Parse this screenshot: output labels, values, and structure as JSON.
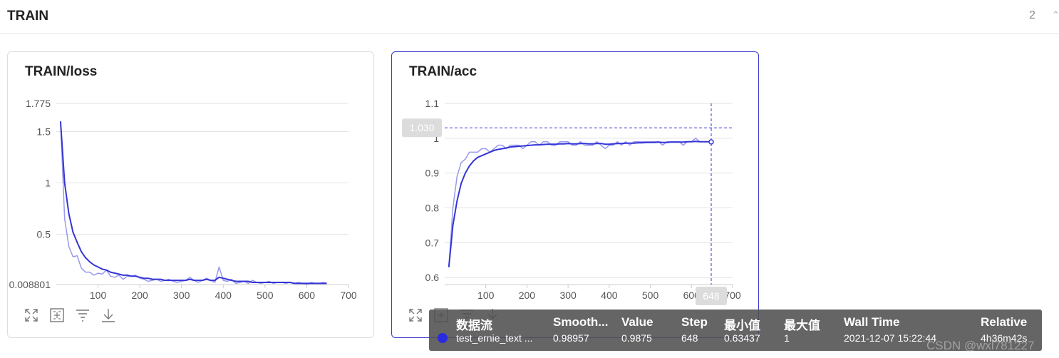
{
  "header": {
    "title": "TRAIN",
    "page_count": "2"
  },
  "chart_data": [
    {
      "type": "line",
      "title": "TRAIN/loss",
      "xlim": [
        0,
        700
      ],
      "ylim": [
        0.008801,
        1.775
      ],
      "x_ticks": [
        "100",
        "200",
        "300",
        "400",
        "500",
        "600",
        "700"
      ],
      "y_ticks": [
        "1.775",
        "1.5",
        "1",
        "0.5",
        "0.008801"
      ],
      "grid": true,
      "series": [
        {
          "role": "raw",
          "color": "#9999ee",
          "x": [
            10,
            20,
            30,
            40,
            50,
            60,
            70,
            80,
            90,
            100,
            110,
            120,
            130,
            140,
            150,
            160,
            170,
            180,
            190,
            200,
            210,
            220,
            230,
            240,
            250,
            260,
            270,
            280,
            290,
            300,
            310,
            320,
            330,
            340,
            350,
            360,
            370,
            380,
            390,
            400,
            410,
            420,
            430,
            440,
            450,
            460,
            470,
            480,
            490,
            500,
            510,
            520,
            530,
            540,
            550,
            560,
            570,
            580,
            590,
            600,
            610,
            620,
            630,
            640,
            648
          ],
          "y": [
            1.6,
            0.65,
            0.38,
            0.28,
            0.29,
            0.17,
            0.13,
            0.13,
            0.1,
            0.12,
            0.11,
            0.15,
            0.09,
            0.08,
            0.1,
            0.06,
            0.09,
            0.09,
            0.1,
            0.07,
            0.06,
            0.04,
            0.05,
            0.06,
            0.04,
            0.05,
            0.06,
            0.04,
            0.03,
            0.04,
            0.05,
            0.08,
            0.05,
            0.03,
            0.05,
            0.07,
            0.05,
            0.03,
            0.18,
            0.05,
            0.04,
            0.06,
            0.02,
            0.03,
            0.04,
            0.02,
            0.05,
            0.03,
            0.02,
            0.03,
            0.04,
            0.02,
            0.03,
            0.03,
            0.02,
            0.03,
            0.02,
            0.03,
            0.02,
            0.01,
            0.03,
            0.02,
            0.02,
            0.03,
            0.02
          ]
        },
        {
          "role": "smoothed",
          "color": "#3535d6",
          "x": [
            10,
            20,
            30,
            40,
            50,
            60,
            70,
            80,
            90,
            100,
            110,
            120,
            130,
            140,
            150,
            160,
            170,
            180,
            190,
            200,
            210,
            220,
            230,
            240,
            250,
            260,
            270,
            280,
            290,
            300,
            310,
            320,
            330,
            340,
            350,
            360,
            370,
            380,
            390,
            400,
            410,
            420,
            430,
            440,
            450,
            460,
            470,
            480,
            490,
            500,
            510,
            520,
            530,
            540,
            550,
            560,
            570,
            580,
            590,
            600,
            610,
            620,
            630,
            640,
            648
          ],
          "y": [
            1.6,
            1.0,
            0.7,
            0.52,
            0.42,
            0.33,
            0.27,
            0.23,
            0.2,
            0.18,
            0.16,
            0.15,
            0.13,
            0.12,
            0.11,
            0.1,
            0.1,
            0.09,
            0.09,
            0.08,
            0.07,
            0.07,
            0.06,
            0.06,
            0.06,
            0.05,
            0.05,
            0.05,
            0.05,
            0.05,
            0.05,
            0.06,
            0.05,
            0.05,
            0.05,
            0.06,
            0.05,
            0.05,
            0.08,
            0.07,
            0.06,
            0.05,
            0.04,
            0.04,
            0.04,
            0.04,
            0.03,
            0.03,
            0.03,
            0.03,
            0.03,
            0.03,
            0.03,
            0.03,
            0.03,
            0.03,
            0.02,
            0.02,
            0.02,
            0.02,
            0.02,
            0.02,
            0.02,
            0.02,
            0.02
          ]
        }
      ]
    },
    {
      "type": "line",
      "title": "TRAIN/acc",
      "xlim": [
        0,
        700
      ],
      "ylim": [
        0.58,
        1.1
      ],
      "x_ticks": [
        "100",
        "200",
        "300",
        "400",
        "500",
        "600",
        "700"
      ],
      "y_ticks": [
        "1.1",
        "1",
        "0.9",
        "0.8",
        "0.7",
        "0.6"
      ],
      "grid": true,
      "hover": {
        "x": 648,
        "y": 1.03,
        "x_label": "648",
        "y_label": "1.030"
      },
      "series": [
        {
          "role": "raw",
          "color": "#9999ee",
          "x": [
            10,
            20,
            30,
            40,
            50,
            60,
            70,
            80,
            90,
            100,
            110,
            120,
            130,
            140,
            150,
            160,
            170,
            180,
            190,
            200,
            210,
            220,
            230,
            240,
            250,
            260,
            270,
            280,
            290,
            300,
            310,
            320,
            330,
            340,
            350,
            360,
            370,
            380,
            390,
            400,
            410,
            420,
            430,
            440,
            450,
            460,
            470,
            480,
            490,
            500,
            510,
            520,
            530,
            540,
            550,
            560,
            570,
            580,
            590,
            600,
            610,
            620,
            630,
            640,
            648
          ],
          "y": [
            0.63,
            0.8,
            0.89,
            0.93,
            0.94,
            0.96,
            0.96,
            0.96,
            0.97,
            0.97,
            0.96,
            0.97,
            0.98,
            0.98,
            0.97,
            0.98,
            0.98,
            0.98,
            0.97,
            0.98,
            0.99,
            0.99,
            0.98,
            0.99,
            0.99,
            0.98,
            0.98,
            0.99,
            0.99,
            0.99,
            0.98,
            0.98,
            0.99,
            0.98,
            0.98,
            0.98,
            0.99,
            0.98,
            0.97,
            0.98,
            0.98,
            0.99,
            0.98,
            0.99,
            0.98,
            0.99,
            0.99,
            0.99,
            0.99,
            0.99,
            0.99,
            0.99,
            0.98,
            0.99,
            0.99,
            0.99,
            0.99,
            0.98,
            0.99,
            0.99,
            1.0,
            0.99,
            0.99,
            0.99,
            0.9875
          ]
        },
        {
          "role": "smoothed",
          "color": "#3535d6",
          "x": [
            10,
            20,
            30,
            40,
            50,
            60,
            70,
            80,
            90,
            100,
            110,
            120,
            130,
            140,
            150,
            160,
            170,
            180,
            190,
            200,
            210,
            220,
            230,
            240,
            250,
            260,
            270,
            280,
            290,
            300,
            310,
            320,
            330,
            340,
            350,
            360,
            370,
            380,
            390,
            400,
            410,
            420,
            430,
            440,
            450,
            460,
            470,
            480,
            490,
            500,
            510,
            520,
            530,
            540,
            550,
            560,
            570,
            580,
            590,
            600,
            610,
            620,
            630,
            640,
            648
          ],
          "y": [
            0.63,
            0.75,
            0.82,
            0.87,
            0.9,
            0.92,
            0.935,
            0.945,
            0.95,
            0.955,
            0.96,
            0.965,
            0.968,
            0.97,
            0.972,
            0.975,
            0.976,
            0.977,
            0.978,
            0.979,
            0.98,
            0.981,
            0.981,
            0.982,
            0.983,
            0.983,
            0.983,
            0.984,
            0.984,
            0.985,
            0.984,
            0.984,
            0.985,
            0.985,
            0.984,
            0.984,
            0.985,
            0.985,
            0.983,
            0.983,
            0.984,
            0.985,
            0.985,
            0.986,
            0.986,
            0.986,
            0.987,
            0.987,
            0.988,
            0.988,
            0.988,
            0.989,
            0.988,
            0.988,
            0.989,
            0.989,
            0.989,
            0.989,
            0.99,
            0.99,
            0.991,
            0.99,
            0.99,
            0.99,
            0.98957
          ]
        }
      ]
    }
  ],
  "tooltip": {
    "headers": [
      "数据流",
      "Smooth...",
      "Value",
      "Step",
      "最小值",
      "最大值",
      "Wall Time",
      "Relative"
    ],
    "row": [
      "test_ernie_text ...",
      "0.98957",
      "0.9875",
      "648",
      "0.63437",
      "1",
      "2021-12-07 15:22:44",
      "4h36m42s"
    ]
  },
  "watermark": "CSDN @wxl781227",
  "icons": [
    "fullscreen-icon",
    "fit-screen-icon",
    "filter-icon",
    "download-icon"
  ]
}
